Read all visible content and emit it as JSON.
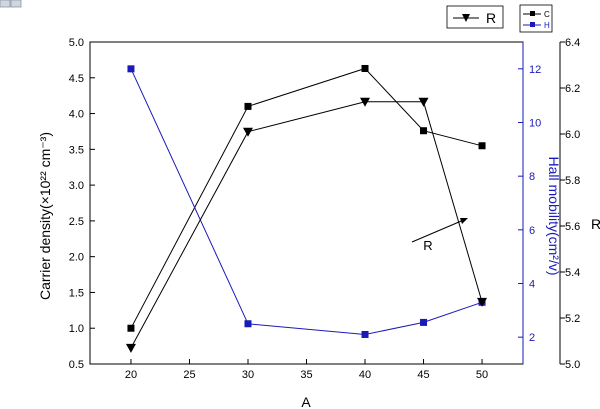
{
  "chart_data": {
    "type": "line",
    "xlabel": "A",
    "ylabel_left": "Carrier density(×10²² cm⁻³)",
    "ylabel_right": "Hall mobility(cm²/v)",
    "ylabel_far_right": "R",
    "x": [
      20,
      30,
      40,
      45,
      50
    ],
    "x_ticks": [
      20,
      25,
      30,
      35,
      40,
      45,
      50
    ],
    "xlim": [
      16.5,
      53.5
    ],
    "ylim_left": [
      0.5,
      5.0
    ],
    "y_ticks_left": [
      "0.5",
      "1.0",
      "1.5",
      "2.0",
      "2.5",
      "3.0",
      "3.5",
      "4.0",
      "4.5",
      "5.0"
    ],
    "ylim_right": [
      1,
      13
    ],
    "y_ticks_right": [
      "2",
      "4",
      "6",
      "8",
      "10",
      "12"
    ],
    "ylim_far_right": [
      5.0,
      6.4
    ],
    "y_ticks_far_right": [
      "5.0",
      "5.2",
      "5.4",
      "5.6",
      "5.8",
      "6.0",
      "6.2",
      "6.4"
    ],
    "series": [
      {
        "name": "C",
        "axis": "left",
        "color": "#000000",
        "marker": "square",
        "values": [
          1.0,
          4.1,
          4.63,
          3.76,
          3.55
        ]
      },
      {
        "name": "H",
        "axis": "right",
        "color": "#1a1ab8",
        "marker": "square",
        "values": [
          12.0,
          2.5,
          2.1,
          2.55,
          3.3
        ]
      },
      {
        "name": "R",
        "axis": "far_right",
        "color": "#000000",
        "marker": "triangle-down",
        "values": [
          5.07,
          6.01,
          6.14,
          6.14,
          5.27
        ]
      }
    ],
    "annotation": "R",
    "grid": false,
    "legend_placement": "top-right"
  }
}
